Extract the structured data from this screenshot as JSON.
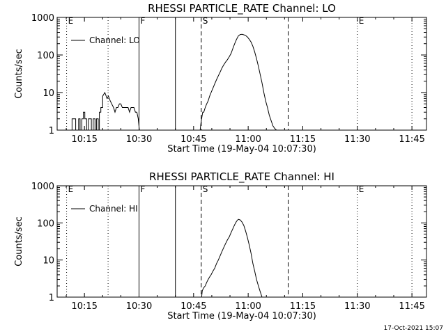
{
  "footer_timestamp": "17-Oct-2021 15:07",
  "chart_data": [
    {
      "type": "line",
      "title": "RHESSI PARTICLE_RATE Channel: LO",
      "xlabel": "Start Time (19-May-04 10:07:30)",
      "ylabel": "Counts/sec",
      "y_scale": "log",
      "ylim": [
        1,
        1000
      ],
      "xlim_minutes": [
        610,
        647
      ],
      "x_ticks": [
        {
          "t": 615,
          "label": "10:15"
        },
        {
          "t": 630,
          "label": "10:30"
        },
        {
          "t": 645,
          "label": "10:45"
        },
        {
          "t": 660,
          "label": "11:00"
        },
        {
          "t": 675,
          "label": "11:15"
        },
        {
          "t": 690,
          "label": "11:30"
        },
        {
          "t": 705,
          "label": "11:45"
        }
      ],
      "y_ticks": [
        {
          "v": 1,
          "label": "1"
        },
        {
          "v": 10,
          "label": "10"
        },
        {
          "v": 100,
          "label": "100"
        },
        {
          "v": 1000,
          "label": "1000"
        }
      ],
      "legend": {
        "label": "Channel: LO",
        "position": "top-left"
      },
      "markers": [
        {
          "t": 610.1,
          "label": "E",
          "style": "dotted"
        },
        {
          "t": 630.0,
          "label": "F",
          "style": "solid"
        },
        {
          "t": 640.0,
          "label": "",
          "style": "solid"
        },
        {
          "t": 647.1,
          "label": "S",
          "style": "dashed"
        },
        {
          "t": 671.0,
          "label": "",
          "style": "dashed"
        },
        {
          "t": 690.0,
          "label": "E",
          "style": "dotted"
        },
        {
          "t": 705.0,
          "label": "",
          "style": "dotted"
        },
        {
          "t": 621.5,
          "label": "",
          "style": "dotted"
        }
      ],
      "series": [
        {
          "segments": [
            {
              "t": [
                611.2,
                611.6,
                611.6,
                612.6,
                612.6,
                613.4,
                613.4,
                613.8,
                613.8,
                614.3,
                614.3,
                614.7,
                614.7,
                615.1,
                615.1,
                615.6,
                615.6,
                616.1,
                616.1,
                616.9,
                616.9,
                617.4,
                617.4,
                617.9,
                617.9,
                618.3,
                618.3,
                618.8,
                618.8,
                619.1,
                619.1,
                619.5,
                619.5,
                620.0,
                620.0,
                620.6,
                620.8,
                621.2,
                621.6,
                622.1,
                622.5,
                623.0,
                623.4,
                623.8,
                624.2,
                624.6,
                625.0,
                625.4,
                626.2,
                626.6,
                627.0,
                627.4,
                627.8,
                628.2,
                628.6,
                629.0,
                629.4,
                629.8,
                630.1
              ],
              "y": [
                1,
                1,
                2,
                2,
                1,
                1,
                2,
                2,
                1,
                1,
                2,
                2,
                3,
                3,
                2,
                2,
                1,
                1,
                2,
                2,
                1,
                1,
                2,
                2,
                1,
                1,
                2,
                2,
                1,
                1,
                3,
                3,
                4,
                4,
                8,
                10,
                9,
                7,
                8,
                6,
                5,
                4,
                3,
                4,
                4,
                5,
                5,
                4,
                4,
                4,
                4,
                3,
                4,
                4,
                4,
                3,
                3,
                2,
                1
              ]
            },
            {
              "t": [
                646.8,
                647.0,
                647.2,
                647.5,
                647.8,
                648.2,
                648.6,
                649.0,
                649.4,
                649.8,
                650.3,
                650.8,
                651.3,
                651.8,
                652.3,
                652.8,
                653.3,
                653.8,
                654.3,
                654.8,
                655.3,
                655.8,
                656.3,
                656.8,
                657.3,
                657.8,
                658.3,
                658.8,
                659.3,
                659.8,
                660.3,
                660.8,
                661.3,
                661.8,
                662.3,
                662.8,
                663.3,
                663.8,
                664.3,
                664.8,
                665.3,
                665.8,
                666.3,
                666.8,
                667.3,
                667.8
              ],
              "y": [
                1,
                1.5,
                2,
                3,
                3,
                4,
                5,
                6,
                8,
                10,
                13,
                17,
                22,
                28,
                35,
                45,
                55,
                65,
                75,
                90,
                110,
                150,
                200,
                260,
                320,
                350,
                355,
                345,
                330,
                300,
                260,
                220,
                170,
                120,
                80,
                50,
                30,
                18,
                10,
                6,
                4,
                2.5,
                1.8,
                1.3,
                1.1,
                1
              ]
            }
          ]
        }
      ]
    },
    {
      "type": "line",
      "title": "RHESSI PARTICLE_RATE Channel: HI",
      "xlabel": "Start Time (19-May-04 10:07:30)",
      "ylabel": "Counts/sec",
      "y_scale": "log",
      "ylim": [
        1,
        1000
      ],
      "xlim_minutes": [
        610,
        647
      ],
      "x_ticks": [
        {
          "t": 615,
          "label": "10:15"
        },
        {
          "t": 630,
          "label": "10:30"
        },
        {
          "t": 645,
          "label": "10:45"
        },
        {
          "t": 660,
          "label": "11:00"
        },
        {
          "t": 675,
          "label": "11:15"
        },
        {
          "t": 690,
          "label": "11:30"
        },
        {
          "t": 705,
          "label": "11:45"
        }
      ],
      "y_ticks": [
        {
          "v": 1,
          "label": "1"
        },
        {
          "v": 10,
          "label": "10"
        },
        {
          "v": 100,
          "label": "100"
        },
        {
          "v": 1000,
          "label": "1000"
        }
      ],
      "legend": {
        "label": "Channel: HI",
        "position": "top-left"
      },
      "markers": [
        {
          "t": 610.1,
          "label": "E",
          "style": "dotted"
        },
        {
          "t": 630.0,
          "label": "F",
          "style": "solid"
        },
        {
          "t": 640.0,
          "label": "",
          "style": "solid"
        },
        {
          "t": 647.1,
          "label": "S",
          "style": "dashed"
        },
        {
          "t": 671.0,
          "label": "",
          "style": "dashed"
        },
        {
          "t": 690.0,
          "label": "E",
          "style": "dotted"
        },
        {
          "t": 705.0,
          "label": "",
          "style": "dotted"
        },
        {
          "t": 621.5,
          "label": "",
          "style": "dotted"
        }
      ],
      "series": [
        {
          "segments": [
            {
              "t": [
                647.2,
                647.4,
                647.8,
                648.2,
                648.6,
                649.0,
                649.4,
                649.8,
                650.3,
                650.8,
                651.3,
                651.8,
                652.3,
                652.8,
                653.3,
                653.8,
                654.3,
                654.8,
                655.3,
                655.8,
                656.3,
                656.8,
                657.3,
                657.8,
                658.3,
                658.8,
                659.3,
                659.8,
                660.3,
                660.8,
                661.3,
                661.8,
                662.3,
                662.8,
                663.3,
                663.8
              ],
              "y": [
                1,
                1.5,
                1.8,
                2,
                2.5,
                3,
                3.5,
                4,
                5,
                6,
                8,
                10,
                13,
                17,
                22,
                28,
                35,
                42,
                55,
                70,
                90,
                110,
                125,
                120,
                105,
                85,
                60,
                40,
                25,
                15,
                8,
                5,
                3,
                2,
                1.4,
                1
              ]
            }
          ]
        }
      ]
    }
  ]
}
